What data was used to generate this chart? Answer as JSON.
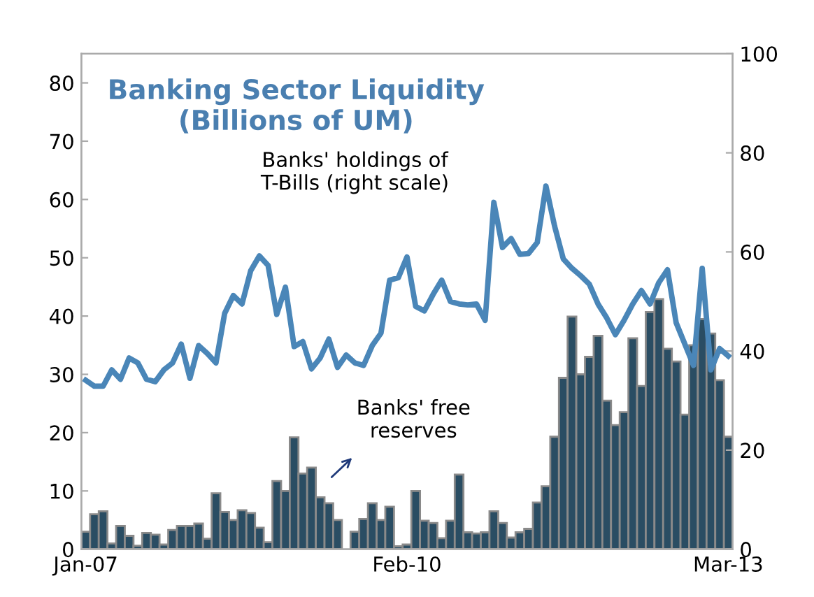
{
  "chart_data": {
    "type": "bar",
    "title": "Banking Sector Liquidity\n(Billions of UM)",
    "categories": [
      "Jan-07",
      null,
      null,
      null,
      null,
      null,
      null,
      null,
      null,
      null,
      null,
      null,
      null,
      null,
      null,
      null,
      null,
      null,
      null,
      null,
      null,
      null,
      null,
      null,
      null,
      null,
      null,
      null,
      null,
      null,
      null,
      null,
      null,
      null,
      null,
      null,
      null,
      "Feb-10",
      null,
      null,
      null,
      null,
      null,
      null,
      null,
      null,
      null,
      null,
      null,
      null,
      null,
      null,
      null,
      null,
      null,
      null,
      null,
      null,
      null,
      null,
      null,
      null,
      null,
      null,
      null,
      null,
      null,
      null,
      null,
      null,
      null,
      null,
      null,
      null,
      "Mar-13"
    ],
    "series": [
      {
        "color": "#2a4d63",
        "values": [
          3,
          6,
          6.5,
          1,
          4,
          2.3,
          0.6,
          2.8,
          2.5,
          0.8,
          3.3,
          4,
          4,
          4.4,
          1.8,
          9.6,
          6.4,
          5,
          6.7,
          6.2,
          3.7,
          1.2,
          11.7,
          10,
          19.2,
          13,
          14,
          8.9,
          7.9,
          5,
          0,
          3,
          5.2,
          7.9,
          5,
          7.3,
          0.5,
          0.8,
          10,
          4.9,
          4.5,
          1.9,
          4.9,
          12.8,
          2.9,
          2.7,
          2.9,
          6.5,
          4.5,
          2,
          2.9,
          3.5,
          8,
          10.8,
          19.3,
          29.4,
          39.9,
          30,
          33,
          36.6,
          25.5,
          21.3,
          23.5,
          36.2,
          28,
          40.7,
          42.9,
          34.4,
          32.2,
          23.1,
          35,
          39.5,
          37,
          29,
          19.3
        ]
      },
      {
        "type": "line",
        "axis": "y2",
        "color": "#4a86b8",
        "values": [
          34.1,
          32.9,
          32.9,
          36.2,
          34.3,
          38.6,
          37.6,
          34.3,
          33.8,
          36.2,
          37.6,
          41.4,
          34.5,
          41.1,
          39.5,
          37.6,
          47.6,
          51.2,
          49.5,
          56.2,
          59.2,
          57.3,
          47.4,
          52.9,
          40.9,
          41.9,
          36.4,
          38.6,
          42.4,
          36.7,
          39.2,
          37.6,
          37.1,
          41.1,
          43.6,
          54.3,
          54.8,
          59,
          49,
          48.1,
          51.4,
          54.3,
          50,
          49.5,
          49.3,
          49.5,
          46.2,
          70,
          60.9,
          62.7,
          59.5,
          59.7,
          61.9,
          73.3,
          65.2,
          58.6,
          56.7,
          55.2,
          53.5,
          49.5,
          46.7,
          43.3,
          46.2,
          49.5,
          52.2,
          49.5,
          53.8,
          56.4,
          45.7,
          41.4,
          37.1,
          56.7,
          36.2,
          40.5,
          39
        ]
      }
    ],
    "ylim": [
      0,
      85
    ],
    "yticks": [
      0,
      10,
      20,
      30,
      40,
      50,
      60,
      70,
      80
    ],
    "y2lim": [
      0,
      100
    ],
    "y2ticks": [
      0,
      20,
      40,
      60,
      80,
      100
    ],
    "annotations": [
      "Banks' holdings of\nT-Bills (right scale)",
      "Banks' free\nreserves"
    ],
    "grid": false,
    "legend": false
  }
}
